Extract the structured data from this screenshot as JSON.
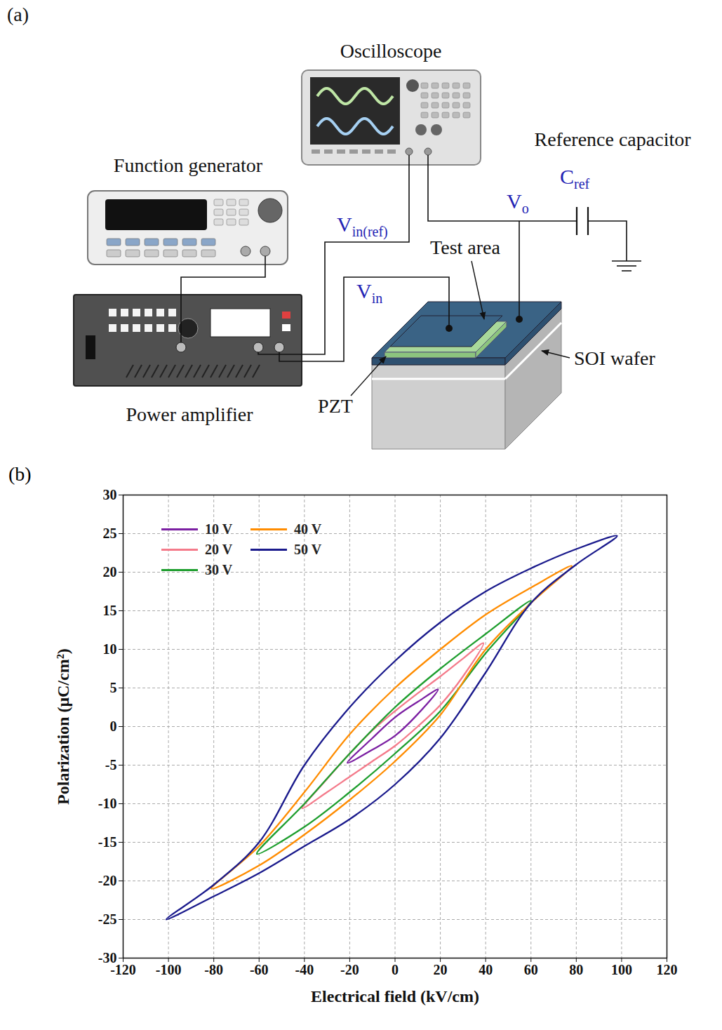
{
  "panel_labels": [
    "(a)",
    "(b)"
  ],
  "diagram": {
    "labels": {
      "oscilloscope": "Oscilloscope",
      "function_generator": "Function generator",
      "power_amplifier": "Power amplifier",
      "reference_capacitor": "Reference capacitor",
      "test_area": "Test area",
      "soi_wafer": "SOI wafer",
      "pzt": "PZT"
    },
    "signals": {
      "vin_ref": {
        "text": "V",
        "sub": "in(ref)"
      },
      "vin": {
        "text": "V",
        "sub": "in"
      },
      "vo": {
        "text": "V",
        "sub": "o"
      },
      "cref": {
        "text": "C",
        "sub": "ref"
      }
    }
  },
  "chart_data": {
    "type": "line",
    "x_label": "Electrical field (kV/cm)",
    "y_label": "Polarization (μC/cm²)",
    "xlim": [
      -120,
      120
    ],
    "ylim": [
      -30,
      30
    ],
    "xticks": [
      -120,
      -100,
      -80,
      -60,
      -40,
      -20,
      0,
      20,
      40,
      60,
      80,
      100,
      120
    ],
    "yticks": [
      -30,
      -25,
      -20,
      -15,
      -10,
      -5,
      0,
      5,
      10,
      15,
      20,
      25,
      30
    ],
    "grid": true,
    "legend": "upper left",
    "series": [
      {
        "name": "10 V",
        "color": "#7b1fa2",
        "x": [
          19,
          10,
          0,
          -10,
          -21,
          -10,
          0,
          10
        ],
        "values": [
          4.8,
          3.2,
          1.2,
          -1.5,
          -4.7,
          -3.0,
          -1.2,
          1.6
        ]
      },
      {
        "name": "20 V",
        "color": "#f47a8a",
        "x": [
          39,
          30,
          20,
          10,
          0,
          -10,
          -20,
          -30,
          -41,
          -30,
          -20,
          -10,
          0,
          10,
          20,
          30
        ],
        "values": [
          10.8,
          8.8,
          6.5,
          4.3,
          2.0,
          -0.5,
          -3.5,
          -6.8,
          -10.6,
          -8.5,
          -6.5,
          -4.5,
          -2.5,
          0,
          2.8,
          6.5
        ]
      },
      {
        "name": "30 V",
        "color": "#1e9e2e",
        "x": [
          60,
          40,
          20,
          0,
          -20,
          -40,
          -61,
          -40,
          -20,
          0,
          20,
          40
        ],
        "values": [
          16.3,
          12.0,
          7.5,
          2.5,
          -3.5,
          -10.0,
          -16.5,
          -13.0,
          -8.5,
          -3.5,
          2.0,
          9.5
        ]
      },
      {
        "name": "40 V",
        "color": "#ff8c00",
        "x": [
          78,
          60,
          40,
          20,
          0,
          -20,
          -40,
          -60,
          -81,
          -60,
          -40,
          -20,
          0,
          20,
          40,
          60
        ],
        "values": [
          20.8,
          18.0,
          14.5,
          10.0,
          5.0,
          -1.0,
          -8.5,
          -15.5,
          -21.0,
          -18.0,
          -14.0,
          -9.5,
          -4.5,
          1.5,
          10.0,
          16.0
        ]
      },
      {
        "name": "50 V",
        "color": "#1a1a8c",
        "x": [
          98,
          80,
          60,
          40,
          20,
          0,
          -20,
          -40,
          -60,
          -80,
          -101,
          -80,
          -60,
          -40,
          -20,
          0,
          20,
          40,
          60,
          80
        ],
        "values": [
          24.7,
          23.0,
          20.5,
          17.5,
          13.5,
          8.5,
          2.5,
          -5.0,
          -15.0,
          -20.5,
          -25.0,
          -22.0,
          -19.0,
          -15.5,
          -12.0,
          -7.5,
          -1.5,
          7.0,
          16.0,
          21.0
        ]
      }
    ]
  }
}
